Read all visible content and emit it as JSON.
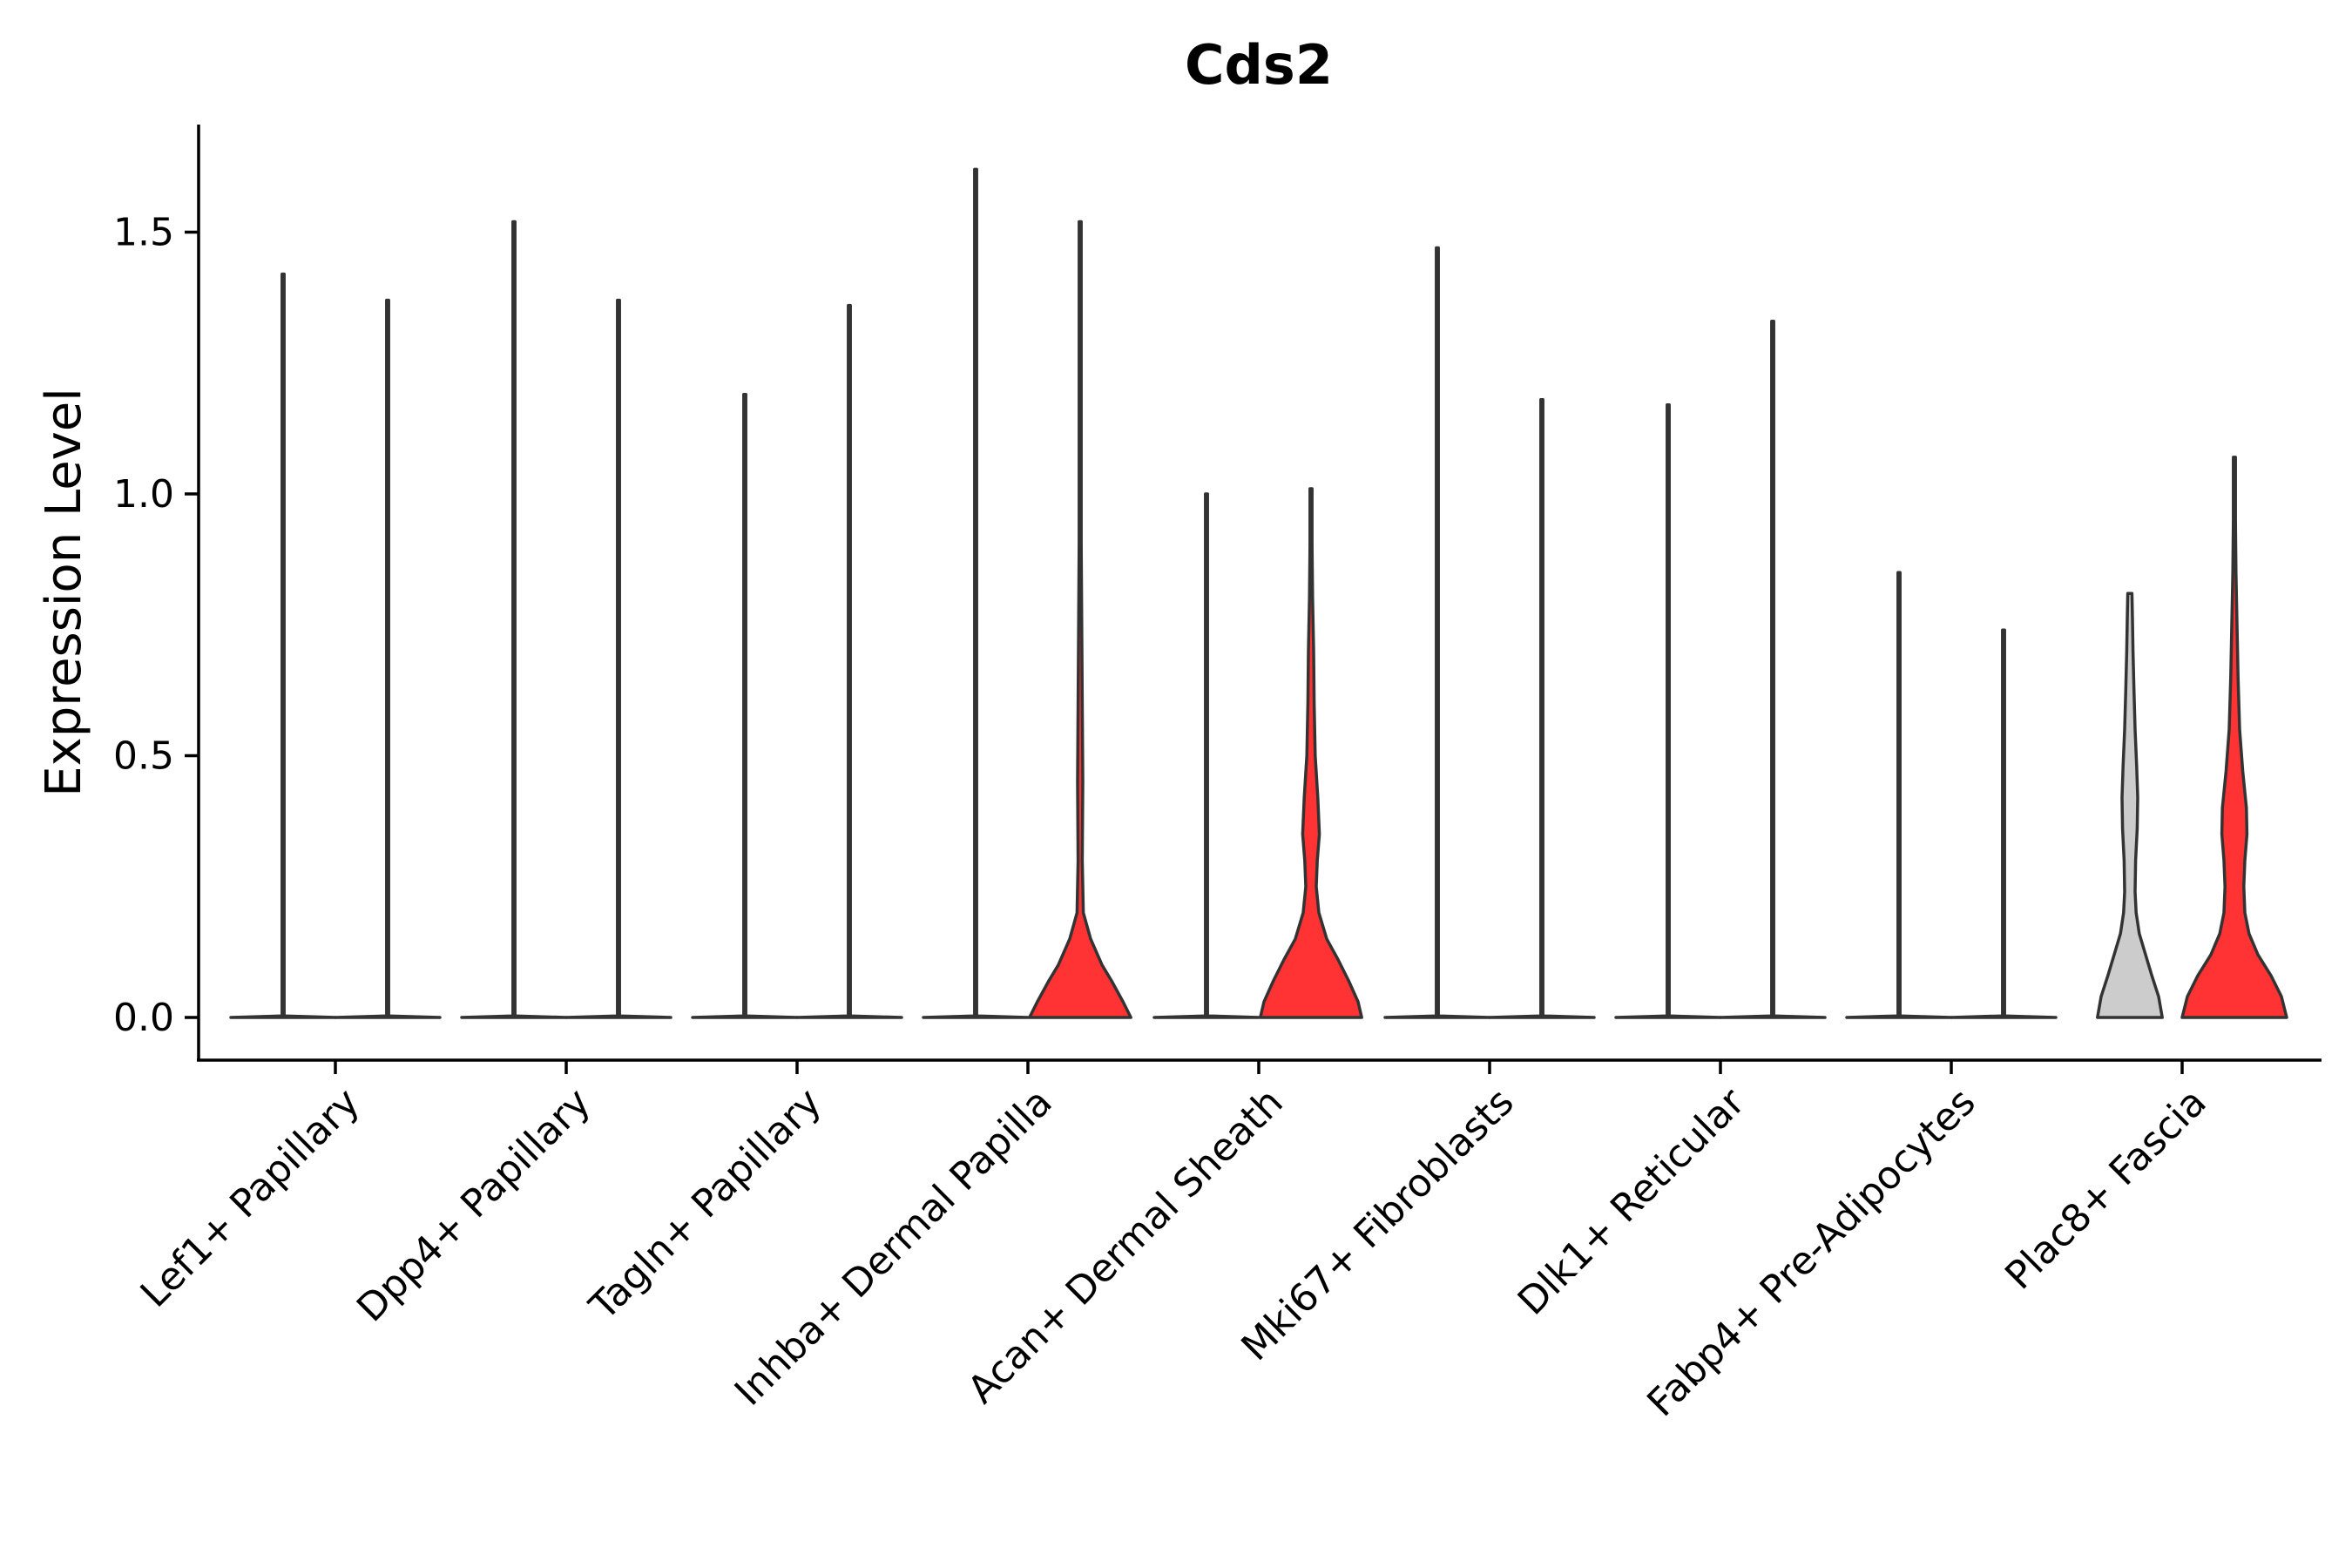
{
  "chart_data": {
    "type": "violin",
    "title": "Cds2",
    "ylabel": "Expression Level",
    "xlabel": "",
    "ylim": [
      -0.08,
      1.72
    ],
    "yticks": [
      0.0,
      0.5,
      1.0,
      1.5
    ],
    "ytick_labels": [
      "0.0",
      "0.5",
      "1.0",
      "1.5"
    ],
    "grid": false,
    "legend": "none",
    "categories": [
      "Lef1+ Papillary",
      "Dpp4+ Papillary",
      "Tagln+ Papillary",
      "Inhba+ Dermal Papilla",
      "Acan+ Dermal Sheath",
      "Mki67+ Fibroblasts",
      "Dlk1+ Reticular",
      "Fabp4+ Pre-Adipocytes",
      "Plac8+ Fascia"
    ],
    "series": [
      {
        "color": "#cccccc",
        "max": [
          1.42,
          1.52,
          1.19,
          1.62,
          1.0,
          1.47,
          1.17,
          0.85,
          0.81
        ],
        "density": [
          [
            [
              0,
              1
            ],
            [
              0.003,
              0.02
            ],
            [
              0.02,
              0.005
            ],
            [
              1.42,
              0.005
            ]
          ],
          [
            [
              0,
              1
            ],
            [
              0.003,
              0.02
            ],
            [
              0.02,
              0.005
            ],
            [
              1.52,
              0.005
            ]
          ],
          [
            [
              0,
              1
            ],
            [
              0.003,
              0.02
            ],
            [
              0.02,
              0.005
            ],
            [
              1.19,
              0.005
            ]
          ],
          [
            [
              0,
              1
            ],
            [
              0.003,
              0.02
            ],
            [
              0.02,
              0.005
            ],
            [
              1.62,
              0.005
            ]
          ],
          [
            [
              0,
              1
            ],
            [
              0.003,
              0.02
            ],
            [
              0.02,
              0.005
            ],
            [
              1.0,
              0.005
            ]
          ],
          [
            [
              0,
              1
            ],
            [
              0.003,
              0.02
            ],
            [
              0.02,
              0.005
            ],
            [
              1.47,
              0.005
            ]
          ],
          [
            [
              0,
              1
            ],
            [
              0.003,
              0.02
            ],
            [
              0.02,
              0.005
            ],
            [
              1.17,
              0.005
            ]
          ],
          [
            [
              0,
              1
            ],
            [
              0.003,
              0.02
            ],
            [
              0.02,
              0.005
            ],
            [
              0.85,
              0.005
            ]
          ],
          [
            [
              0,
              0.62
            ],
            [
              0.04,
              0.55
            ],
            [
              0.08,
              0.42
            ],
            [
              0.12,
              0.3
            ],
            [
              0.16,
              0.18
            ],
            [
              0.2,
              0.12
            ],
            [
              0.24,
              0.1
            ],
            [
              0.3,
              0.11
            ],
            [
              0.36,
              0.14
            ],
            [
              0.42,
              0.15
            ],
            [
              0.48,
              0.13
            ],
            [
              0.55,
              0.1
            ],
            [
              0.62,
              0.08
            ],
            [
              0.7,
              0.06
            ],
            [
              0.76,
              0.05
            ],
            [
              0.81,
              0.04
            ]
          ]
        ]
      },
      {
        "color": "#ff3333",
        "max": [
          1.37,
          1.37,
          1.36,
          1.52,
          1.01,
          1.18,
          1.33,
          0.74,
          1.07
        ],
        "density": [
          [
            [
              0,
              1
            ],
            [
              0.003,
              0.02
            ],
            [
              0.02,
              0.005
            ],
            [
              1.37,
              0.005
            ]
          ],
          [
            [
              0,
              1
            ],
            [
              0.003,
              0.02
            ],
            [
              0.02,
              0.005
            ],
            [
              1.37,
              0.005
            ]
          ],
          [
            [
              0,
              1
            ],
            [
              0.003,
              0.02
            ],
            [
              0.02,
              0.005
            ],
            [
              1.36,
              0.005
            ]
          ],
          [
            [
              0,
              0.97
            ],
            [
              0.03,
              0.82
            ],
            [
              0.07,
              0.6
            ],
            [
              0.1,
              0.42
            ],
            [
              0.15,
              0.2
            ],
            [
              0.2,
              0.06
            ],
            [
              0.3,
              0.04
            ],
            [
              0.45,
              0.05
            ],
            [
              0.6,
              0.04
            ],
            [
              0.75,
              0.03
            ],
            [
              0.9,
              0.02
            ],
            [
              1.1,
              0.01
            ],
            [
              1.25,
              0.005
            ],
            [
              1.52,
              0.003
            ]
          ],
          [
            [
              0,
              0.97
            ],
            [
              0.03,
              0.9
            ],
            [
              0.07,
              0.72
            ],
            [
              0.11,
              0.52
            ],
            [
              0.15,
              0.3
            ],
            [
              0.2,
              0.15
            ],
            [
              0.25,
              0.1
            ],
            [
              0.3,
              0.12
            ],
            [
              0.35,
              0.16
            ],
            [
              0.42,
              0.13
            ],
            [
              0.5,
              0.08
            ],
            [
              0.6,
              0.06
            ],
            [
              0.7,
              0.05
            ],
            [
              0.8,
              0.03
            ],
            [
              0.9,
              0.02
            ],
            [
              1.01,
              0.01
            ]
          ],
          [
            [
              0,
              1
            ],
            [
              0.003,
              0.02
            ],
            [
              0.02,
              0.005
            ],
            [
              1.18,
              0.005
            ]
          ],
          [
            [
              0,
              1
            ],
            [
              0.003,
              0.02
            ],
            [
              0.02,
              0.005
            ],
            [
              1.33,
              0.005
            ]
          ],
          [
            [
              0,
              1
            ],
            [
              0.003,
              0.02
            ],
            [
              0.02,
              0.005
            ],
            [
              0.74,
              0.005
            ]
          ],
          [
            [
              0,
              1.0
            ],
            [
              0.04,
              0.9
            ],
            [
              0.08,
              0.7
            ],
            [
              0.12,
              0.45
            ],
            [
              0.16,
              0.28
            ],
            [
              0.2,
              0.2
            ],
            [
              0.25,
              0.18
            ],
            [
              0.3,
              0.2
            ],
            [
              0.35,
              0.24
            ],
            [
              0.4,
              0.23
            ],
            [
              0.47,
              0.16
            ],
            [
              0.55,
              0.1
            ],
            [
              0.65,
              0.07
            ],
            [
              0.75,
              0.05
            ],
            [
              0.85,
              0.03
            ],
            [
              0.95,
              0.02
            ],
            [
              1.07,
              0.01
            ]
          ]
        ]
      }
    ]
  }
}
